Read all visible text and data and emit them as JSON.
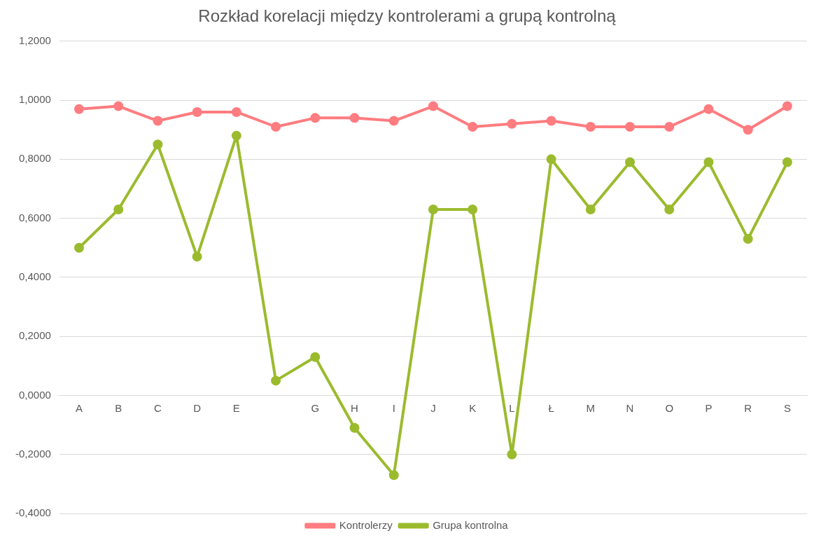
{
  "chart_data": {
    "type": "line",
    "title": "Rozkład korelacji między kontrolerami a grupą kontrolną",
    "categories": [
      "A",
      "B",
      "C",
      "D",
      "E",
      null,
      "G",
      "H",
      "I",
      "J",
      "K",
      "L",
      "Ł",
      "M",
      "N",
      "O",
      "P",
      "R",
      "S"
    ],
    "series": [
      {
        "name": "Kontrolerzy",
        "color": "#ff7c80",
        "values": [
          0.97,
          0.98,
          0.93,
          0.96,
          0.96,
          0.91,
          0.94,
          0.94,
          0.93,
          0.98,
          0.91,
          0.92,
          0.93,
          0.91,
          0.91,
          0.91,
          0.97,
          0.9,
          0.98
        ]
      },
      {
        "name": "Grupa kontrolna",
        "color": "#9bbb2e",
        "values": [
          0.5,
          0.63,
          0.85,
          0.47,
          0.88,
          0.05,
          0.13,
          -0.11,
          -0.27,
          0.63,
          0.63,
          -0.2,
          0.8,
          0.63,
          0.79,
          0.63,
          0.79,
          0.53,
          0.79
        ]
      }
    ],
    "ylim": [
      -0.4,
      1.2
    ],
    "yticks": [
      {
        "value": -0.4,
        "label": "-0,4000"
      },
      {
        "value": -0.2,
        "label": "-0,2000"
      },
      {
        "value": 0,
        "label": "0,0000"
      },
      {
        "value": 0.2,
        "label": "0,2000"
      },
      {
        "value": 0.4,
        "label": "0,4000"
      },
      {
        "value": 0.6,
        "label": "0,6000"
      },
      {
        "value": 0.8,
        "label": "0,8000"
      },
      {
        "value": 1,
        "label": "1,0000"
      },
      {
        "value": 1.2,
        "label": "1,2000"
      }
    ],
    "grid": "y",
    "legend": "bottom",
    "marker": "circle",
    "line_style": "solid"
  }
}
